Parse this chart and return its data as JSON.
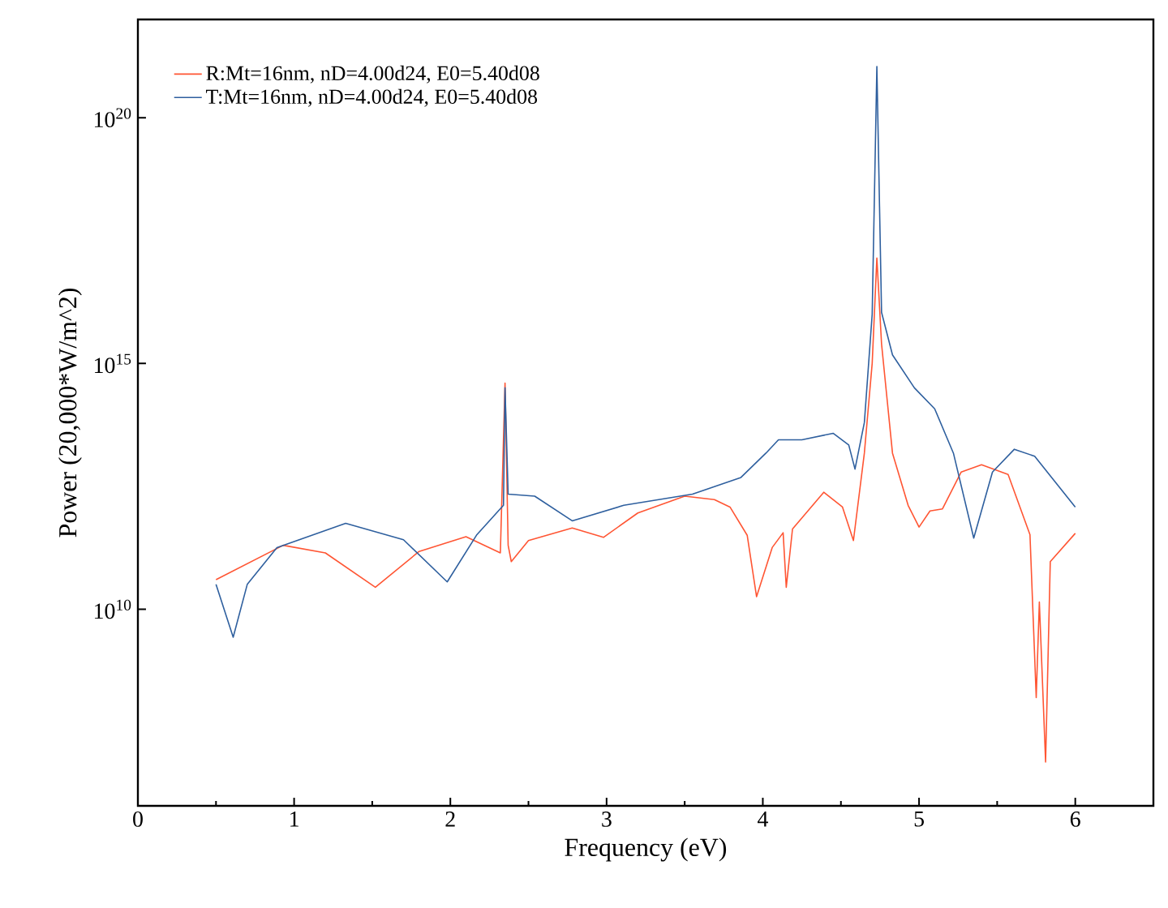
{
  "chart_data": {
    "type": "line",
    "xlabel": "Frequency (eV)",
    "ylabel": "Power (20,000*W/m^2)",
    "log": "y",
    "xlim": [
      0,
      6.5
    ],
    "ylim": [
      1000000.0,
      1e+22
    ],
    "xticks": [
      0,
      1,
      2,
      3,
      4,
      5,
      6
    ],
    "yticks": [
      {
        "value": 10000000000.0,
        "label": "10$^{10}$"
      },
      {
        "value": 1000000000000000.0,
        "label": "10$^{15}$"
      },
      {
        "value": 1e+20,
        "label": "10$^{20}$"
      }
    ],
    "grid": false,
    "legend": "top left",
    "marker": "none",
    "line_style": "solid",
    "series": [
      {
        "name": "R:Mt=16nm, nD=4.00d24, E0=5.40d08",
        "color": "#ff5533",
        "x": [
          0.5,
          0.93,
          1.2,
          1.52,
          1.8,
          2.1,
          2.32,
          2.35,
          2.37,
          2.39,
          2.5,
          2.78,
          2.98,
          3.2,
          3.5,
          3.69,
          3.79,
          3.9,
          3.96,
          4.06,
          4.13,
          4.15,
          4.19,
          4.39,
          4.51,
          4.58,
          4.65,
          4.7,
          4.73,
          4.76,
          4.83,
          4.93,
          5.0,
          5.07,
          5.15,
          5.27,
          5.4,
          5.57,
          5.71,
          5.75,
          5.77,
          5.81,
          5.84,
          6.0
        ],
        "values": [
          40000000000.0,
          200000000000.0,
          140000000000.0,
          28000000000.0,
          150000000000.0,
          300000000000.0,
          140000000000.0,
          400000000000000.0,
          200000000000.0,
          93000000000.0,
          250000000000.0,
          450000000000.0,
          290000000000.0,
          910000000000.0,
          2000000000000.0,
          1700000000000.0,
          1200000000000.0,
          320000000000.0,
          18000000000.0,
          180000000000.0,
          360000000000.0,
          28000000000.0,
          430000000000.0,
          2400000000000.0,
          1200000000000.0,
          250000000000.0,
          15000000000000.0,
          1000000000000000.0,
          1.4e+17,
          2500000000000000.0,
          15000000000000.0,
          1300000000000.0,
          470000000000.0,
          1000000000000.0,
          1100000000000.0,
          6200000000000.0,
          8700000000000.0,
          5500000000000.0,
          330000000000.0,
          160000000.0,
          14000000000.0,
          7800000.0,
          93000000000.0,
          350000000000.0
        ]
      },
      {
        "name": "T:Mt=16nm, nD=4.00d24, E0=5.40d08",
        "color": "#2e5f9e",
        "x": [
          0.5,
          0.61,
          0.7,
          0.89,
          1.33,
          1.7,
          1.98,
          2.17,
          2.34,
          2.35,
          2.37,
          2.54,
          2.78,
          3.11,
          3.55,
          3.86,
          4.02,
          4.1,
          4.25,
          4.45,
          4.55,
          4.59,
          4.65,
          4.7,
          4.73,
          4.76,
          4.83,
          4.97,
          5.1,
          5.22,
          5.35,
          5.47,
          5.61,
          5.74,
          6.0
        ],
        "values": [
          32000000000.0,
          2700000000.0,
          32000000000.0,
          180000000000.0,
          560000000000.0,
          260000000000.0,
          36000000000.0,
          330000000000.0,
          1300000000000.0,
          320000000000000.0,
          2200000000000.0,
          2000000000000.0,
          630000000000.0,
          1300000000000.0,
          2200000000000.0,
          4800000000000.0,
          15000000000000.0,
          28000000000000.0,
          28000000000000.0,
          38000000000000.0,
          22000000000000.0,
          7100000000000.0,
          63000000000000.0,
          1e+16,
          1.1e+21,
          1.1e+16,
          1500000000000000.0,
          320000000000000.0,
          120000000000000.0,
          15000000000000.0,
          280000000000.0,
          6200000000000.0,
          18000000000000.0,
          13000000000000.0,
          1200000000000.0
        ]
      }
    ]
  }
}
